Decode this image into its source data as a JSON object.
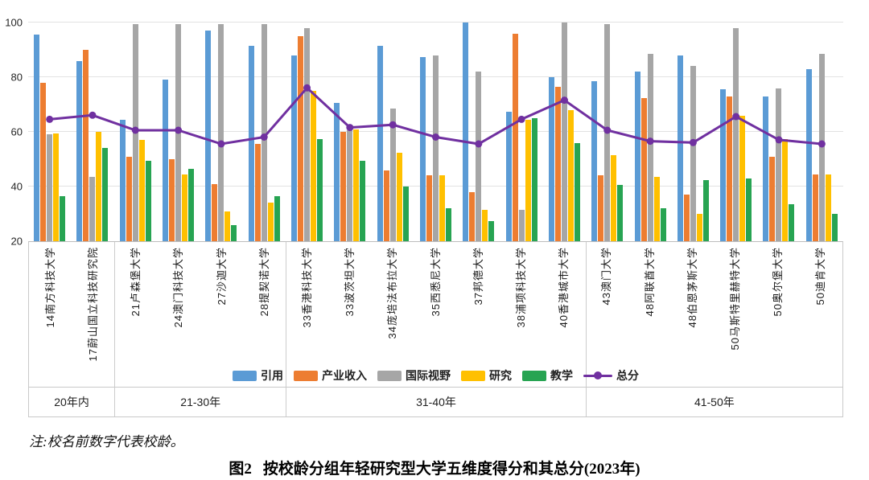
{
  "note": "注:校名前数字代表校龄。",
  "caption": {
    "figure_label": "图2",
    "text": "按校龄分组年轻研究型大学五维度得分和其总分(2023年)"
  },
  "chart_data": {
    "type": "bar",
    "title": "按校龄分组年轻研究型大学五维度得分和其总分(2023年)",
    "xlabel": "",
    "ylabel": "",
    "ylim": [
      20,
      100
    ],
    "yticks": [
      20,
      40,
      60,
      80,
      100
    ],
    "grid": "horizontal",
    "legend_position": "bottom",
    "categories": [
      "14南方科技大学",
      "17蔚山国立科技研究院",
      "21卢森堡大学",
      "24澳门科技大学",
      "27沙迦大学",
      "28提契诺大学",
      "33香港科技大学",
      "33波茨坦大学",
      "34庞培法布拉大学",
      "35西悉尼大学",
      "37邦德大学",
      "38浦项科技大学",
      "40香港城市大学",
      "43澳门大学",
      "48阿联酋大学",
      "48伯恩茅斯大学",
      "50马斯特里赫特大学",
      "50奥尔堡大学",
      "50迪肯大学"
    ],
    "age_groups": [
      {
        "label": "20年内",
        "span": 2
      },
      {
        "label": "21-30年",
        "span": 4
      },
      {
        "label": "31-40年",
        "span": 7
      },
      {
        "label": "41-50年",
        "span": 6
      }
    ],
    "series": [
      {
        "id": "citations",
        "name": "引用",
        "color": "#5B9BD5",
        "values": [
          95.5,
          86,
          64.5,
          79,
          97,
          91.5,
          88,
          70.5,
          91.5,
          87.5,
          100,
          67.5,
          80,
          78.5,
          82,
          88,
          75.5,
          73,
          83
        ]
      },
      {
        "id": "industry-income",
        "name": "产业收入",
        "color": "#ED7D31",
        "values": [
          78,
          90,
          51,
          50,
          41,
          55.5,
          95,
          60,
          46,
          44,
          38,
          96,
          76.5,
          44,
          72.5,
          37,
          73,
          51,
          44.5
        ]
      },
      {
        "id": "international-outlook",
        "name": "国际视野",
        "color": "#A6A6A6",
        "values": [
          59,
          43.5,
          99.5,
          99.5,
          99.5,
          99.5,
          98,
          60.5,
          68.5,
          88,
          82,
          31.5,
          100,
          99.5,
          88.5,
          84,
          98,
          76,
          88.5
        ]
      },
      {
        "id": "research",
        "name": "研究",
        "color": "#FFC000",
        "values": [
          59.5,
          60,
          57,
          44.5,
          31,
          34,
          75,
          61,
          52.5,
          44,
          31.5,
          64.5,
          68,
          51.5,
          43.5,
          30,
          66,
          57.5,
          44.5
        ]
      },
      {
        "id": "teaching",
        "name": "教学",
        "color": "#27A452",
        "values": [
          36.5,
          54,
          49.5,
          46.5,
          26,
          36.5,
          57.5,
          49.5,
          40,
          32,
          27.5,
          65,
          56,
          40.5,
          32,
          42.5,
          43,
          33.5,
          30
        ]
      }
    ],
    "line_series": {
      "id": "total-score",
      "name": "总分",
      "color": "#7030A0",
      "values": [
        64,
        65.5,
        60,
        60,
        55,
        57.5,
        75.5,
        61,
        62,
        57.5,
        55,
        64,
        71,
        60,
        56,
        55.5,
        65,
        56.5,
        55
      ]
    }
  }
}
